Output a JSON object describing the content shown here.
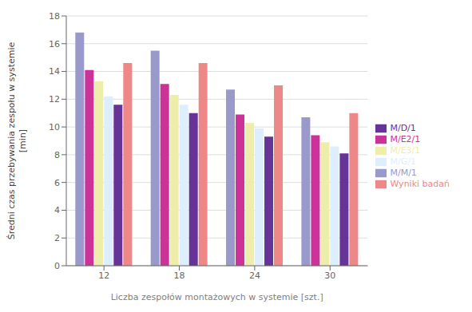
{
  "chart_data": {
    "type": "bar",
    "categories": [
      12,
      18,
      24,
      30
    ],
    "series": [
      {
        "name": "M/M/1",
        "color": "#9999cc",
        "values": [
          16.8,
          15.5,
          12.7,
          10.7
        ]
      },
      {
        "name": "M/E2/1",
        "color": "#cc3399",
        "values": [
          14.1,
          13.1,
          10.9,
          9.4
        ]
      },
      {
        "name": "M/E3/1",
        "color": "#eeeeaa",
        "values": [
          13.3,
          12.3,
          10.3,
          8.9
        ]
      },
      {
        "name": "M/G/1",
        "color": "#ddeeff",
        "values": [
          12.2,
          11.6,
          9.9,
          8.6
        ]
      },
      {
        "name": "M/D/1",
        "color": "#663399",
        "values": [
          11.6,
          11.0,
          9.3,
          8.1
        ]
      },
      {
        "name": "Wyniki badań",
        "color": "#ee8888",
        "values": [
          14.6,
          14.6,
          13.0,
          11.0
        ]
      }
    ],
    "xlabel": "Liczba zespołów montażowych w systemie [szt.]",
    "ylabel": "Średni czas przebywania zespołu w systemie\n[min]",
    "ylim": [
      0,
      18
    ],
    "yticks": [
      0,
      2,
      4,
      6,
      8,
      10,
      12,
      14,
      16,
      18
    ],
    "grid": true,
    "legend": "right"
  }
}
